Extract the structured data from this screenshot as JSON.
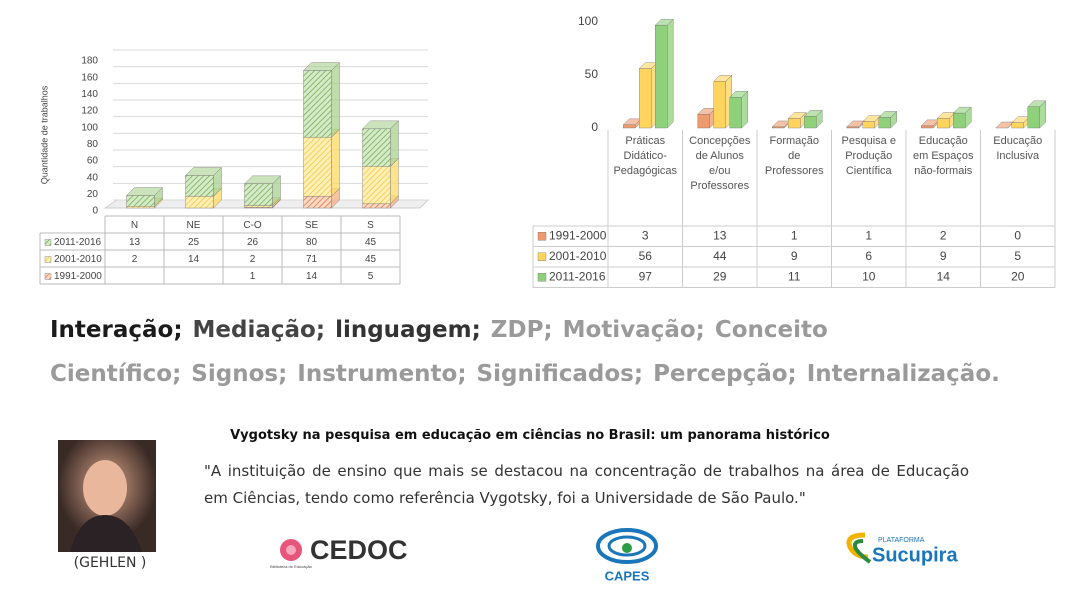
{
  "chart_data": [
    {
      "type": "bar",
      "stacked": true,
      "y_label": "Quantidade de trabalhos",
      "categories": [
        "N",
        "NE",
        "C-O",
        "SE",
        "S"
      ],
      "series": [
        {
          "name": "2011-2016",
          "color": "#a9d18e",
          "values": [
            13,
            25,
            26,
            80,
            45
          ]
        },
        {
          "name": "2001-2010",
          "color": "#ffd966",
          "values": [
            2,
            14,
            2,
            71,
            45
          ]
        },
        {
          "name": "1991-2000",
          "color": "#f4b183",
          "values": [
            null,
            null,
            1,
            14,
            5
          ]
        }
      ],
      "ylim": [
        0,
        180
      ],
      "yticks": [
        0,
        20,
        40,
        60,
        80,
        100,
        120,
        140,
        160,
        180
      ],
      "grid": true
    },
    {
      "type": "bar",
      "stacked": false,
      "categories": [
        "Práticas Didático-Pedagógicas",
        "Concepções de Alunos e/ou Professores",
        "Formação de Professores",
        "Pesquisa e Produção Científica",
        "Educação em Espaços não-formais",
        "Educação Inclusiva"
      ],
      "series": [
        {
          "name": "1991-2000",
          "color": "#ed9a6c",
          "values": [
            3,
            13,
            1,
            1,
            2,
            0
          ]
        },
        {
          "name": "2001-2010",
          "color": "#ffd45e",
          "values": [
            56,
            44,
            9,
            6,
            9,
            5
          ]
        },
        {
          "name": "2011-2016",
          "color": "#8fd07a",
          "values": [
            97,
            29,
            11,
            10,
            14,
            20
          ]
        }
      ],
      "ylim": [
        0,
        100
      ],
      "yticks": [
        0,
        50,
        100
      ],
      "grid": false
    }
  ],
  "keywords": [
    {
      "text": "Interação;",
      "color": "#1a1a1a"
    },
    {
      "text": "Mediação;",
      "color": "#444444"
    },
    {
      "text": "linguagem;",
      "color": "#333333"
    },
    {
      "text": "ZDP;",
      "color": "#9a9a9a"
    },
    {
      "text": "Motivação;",
      "color": "#9a9a9a"
    },
    {
      "text": "Conceito Científico;",
      "color": "#9a9a9a"
    },
    {
      "text": "Signos;",
      "color": "#9a9a9a"
    },
    {
      "text": "Instrumento;",
      "color": "#9a9a9a"
    },
    {
      "text": "Significados;",
      "color": "#9a9a9a"
    },
    {
      "text": "Percepção;",
      "color": "#9a9a9a"
    },
    {
      "text": "Internalização.",
      "color": "#9a9a9a"
    }
  ],
  "reference": {
    "title": "Vygotsky na pesquisa em educação em ciências no Brasil: um panorama histórico",
    "quote": "\"A instituição de ensino que mais se destacou na concentração de trabalhos na área de Educação em Ciências, tendo como referência Vygotsky, foi a Universidade de São Paulo.\"",
    "author": "(GEHLEN )"
  },
  "logos": {
    "cedoc": "CEDOC",
    "cedoc_sub": "Biblioteca de Educação",
    "capes": "CAPES",
    "sucupira_top": "PLATAFORMA",
    "sucupira": "Sucupira"
  }
}
